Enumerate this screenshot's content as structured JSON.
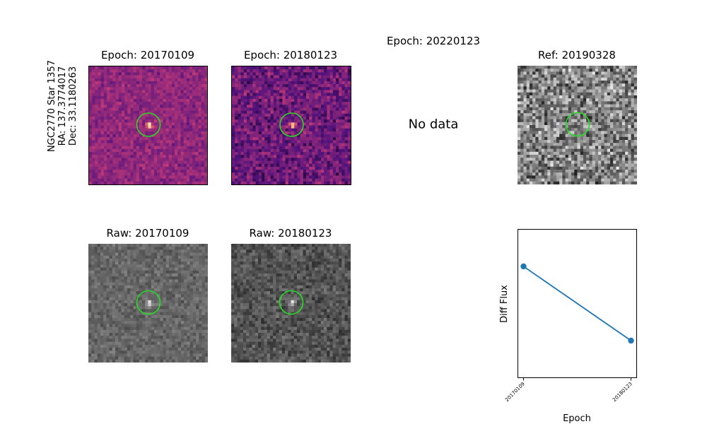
{
  "star_label": {
    "line1": "NGC2770 Star 1357",
    "line2": "RA: 137.3774017",
    "line3": "Dec: 33.1180263"
  },
  "panels": {
    "epoch1_title": "Epoch: 20170109",
    "epoch2_title": "Epoch: 20180123",
    "epoch3_title": "Epoch: 20220123",
    "epoch3_message": "No data",
    "ref_title": "Ref: 20190328",
    "raw1_title": "Raw: 20170109",
    "raw2_title": "Raw: 20180123"
  },
  "colors": {
    "aperture_circle": "#22dd22",
    "series_line": "#1f77b4",
    "diff_colormap": "magma",
    "raw_colormap": "gray"
  },
  "chart_data": {
    "type": "line",
    "title": "",
    "xlabel": "Epoch",
    "ylabel": "Diff Flux",
    "x": [
      "20170109",
      "20180123"
    ],
    "series": [
      {
        "values": [
          0.75,
          0.25
        ]
      }
    ],
    "ylim": [
      0,
      1
    ],
    "yticks_visible": false,
    "grid": false
  }
}
